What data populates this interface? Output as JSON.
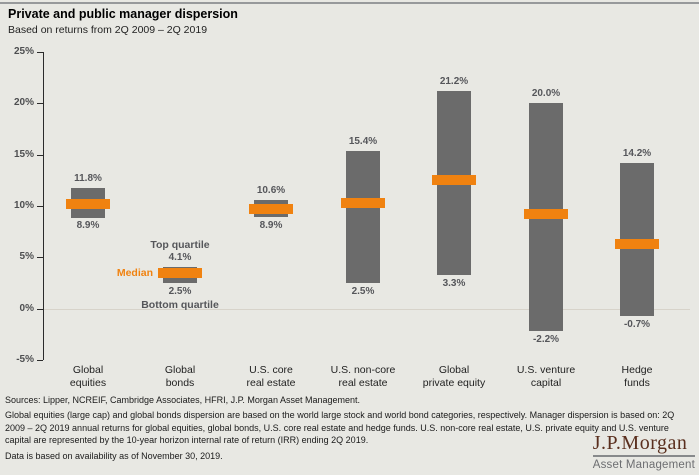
{
  "header": {
    "title": "Private and public manager dispersion",
    "subtitle": "Based on returns from 2Q 2009 – 2Q 2019"
  },
  "chart_data": {
    "type": "bar",
    "subtype": "floating-quartile-range-with-median",
    "title": "Private and public manager dispersion",
    "subtitle": "Based on returns from 2Q 2009 – 2Q 2019",
    "ylim": [
      -5,
      25
    ],
    "y_ticks": [
      {
        "value": 25,
        "label": "25%"
      },
      {
        "value": 20,
        "label": "20%"
      },
      {
        "value": 15,
        "label": "15%"
      },
      {
        "value": 10,
        "label": "10%"
      },
      {
        "value": 5,
        "label": "5%"
      },
      {
        "value": 0,
        "label": "0%"
      },
      {
        "value": -5,
        "label": "-5%"
      }
    ],
    "grid": "zero-line-only",
    "legend": {
      "top": "Top quartile",
      "median": "Median",
      "bottom": "Bottom quartile",
      "annotated_category_index": 1,
      "position": "inline-on-global-bonds-bar"
    },
    "series": [
      {
        "category_lines": [
          "Global",
          "equities"
        ],
        "top_quartile": 11.8,
        "median": 10.2,
        "bottom_quartile": 8.9,
        "top_label": "11.8%",
        "bottom_label": "8.9%"
      },
      {
        "category_lines": [
          "Global",
          "bonds"
        ],
        "top_quartile": 4.1,
        "median": 3.5,
        "bottom_quartile": 2.5,
        "top_label": "4.1%",
        "bottom_label": "2.5%"
      },
      {
        "category_lines": [
          "U.S. core",
          "real estate"
        ],
        "top_quartile": 10.6,
        "median": 9.7,
        "bottom_quartile": 8.9,
        "top_label": "10.6%",
        "bottom_label": "8.9%"
      },
      {
        "category_lines": [
          "U.S. non-core",
          "real estate"
        ],
        "top_quartile": 15.4,
        "median": 10.3,
        "bottom_quartile": 2.5,
        "top_label": "15.4%",
        "bottom_label": "2.5%"
      },
      {
        "category_lines": [
          "Global",
          "private equity"
        ],
        "top_quartile": 21.2,
        "median": 12.5,
        "bottom_quartile": 3.3,
        "top_label": "21.2%",
        "bottom_label": "3.3%"
      },
      {
        "category_lines": [
          "U.S. venture",
          "capital"
        ],
        "top_quartile": 20.0,
        "median": 9.2,
        "bottom_quartile": -2.2,
        "top_label": "20.0%",
        "bottom_label": "-2.2%"
      },
      {
        "category_lines": [
          "Hedge",
          "funds"
        ],
        "top_quartile": 14.2,
        "median": 6.3,
        "bottom_quartile": -0.7,
        "top_label": "14.2%",
        "bottom_label": "-0.7%"
      }
    ],
    "colors": {
      "bar": "#6b6b6b",
      "median_band": "#f08210",
      "value_label": "#55565a",
      "zero_line": "#d7d3ca",
      "background": "#e8e8e3"
    }
  },
  "footer": {
    "sources": "Sources: Lipper, NCREIF, Cambridge Associates, HFRI, J.P. Morgan Asset Management.",
    "disclosure": "Global equities (large cap) and global bonds dispersion are based on the world large stock and world bond categories, respectively. Manager dispersion is based on: 2Q 2009 – 2Q 2019 annual returns for global equities, global bonds, U.S. core real estate and hedge funds. U.S. non-core real estate, U.S. private equity and U.S. venture capital are represented by the 10-year horizon internal rate of return (IRR) ending 2Q 2019.",
    "availability": "Data is based on availability as of November 30, 2019."
  },
  "logo": {
    "name": "J.P.Morgan",
    "subtitle": "Asset Management"
  }
}
